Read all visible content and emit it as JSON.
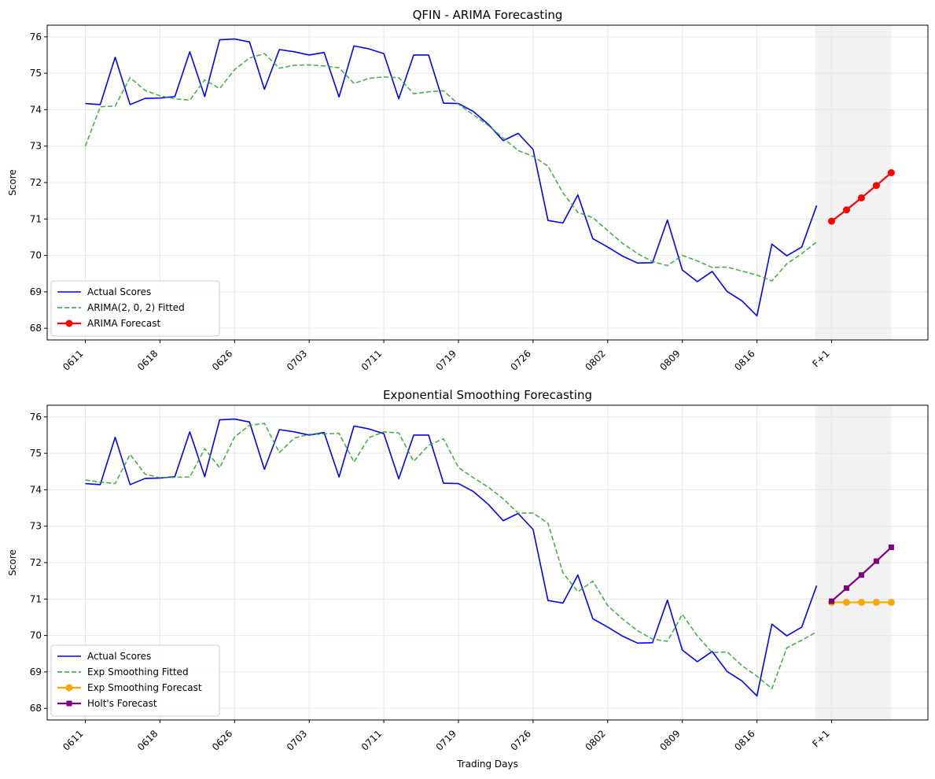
{
  "chart_data": [
    {
      "type": "line",
      "title": "QFIN - ARIMA Forecasting",
      "xlabel": "",
      "ylabel": "Score",
      "ylim": [
        68,
        76
      ],
      "yticks": [
        68,
        69,
        70,
        71,
        72,
        73,
        74,
        75,
        76
      ],
      "xtick_labels": [
        "0611",
        "0618",
        "0626",
        "0703",
        "0711",
        "0719",
        "0726",
        "0802",
        "0809",
        "0816",
        "F+1"
      ],
      "grid": true,
      "legend_position": "lower-left",
      "forecast_region": "F+1 to F+5",
      "series": [
        {
          "name": "Actual Scores",
          "color": "#0000ff",
          "style": "solid",
          "marker": "none",
          "values": [
            74.17,
            74.14,
            75.44,
            74.14,
            74.31,
            74.32,
            74.36,
            75.59,
            74.36,
            75.92,
            75.94,
            75.86,
            74.56,
            75.65,
            75.59,
            75.5,
            75.57,
            74.35,
            75.75,
            75.67,
            75.54,
            74.3,
            75.5,
            75.5,
            74.18,
            74.17,
            73.95,
            73.6,
            73.15,
            73.35,
            72.91,
            70.96,
            70.89,
            71.66,
            70.46,
            70.23,
            69.98,
            69.79,
            69.8,
            70.97,
            69.6,
            69.28,
            69.56,
            69.01,
            68.75,
            68.34,
            70.31,
            69.99,
            70.23,
            71.37
          ]
        },
        {
          "name": "ARIMA(2, 0, 2) Fitted",
          "color": "#2ca02c",
          "style": "dashed",
          "marker": "none",
          "values": [
            73.0,
            74.08,
            74.1,
            74.88,
            74.53,
            74.38,
            74.3,
            74.26,
            74.82,
            74.58,
            75.1,
            75.42,
            75.54,
            75.14,
            75.22,
            75.23,
            75.2,
            75.15,
            74.72,
            74.86,
            74.9,
            74.88,
            74.44,
            74.49,
            74.52,
            74.15,
            73.86,
            73.57,
            73.22,
            72.88,
            72.72,
            72.45,
            71.72,
            71.18,
            71.04,
            70.68,
            70.33,
            70.05,
            69.83,
            69.72,
            70.0,
            69.85,
            69.67,
            69.68,
            69.57,
            69.46,
            69.3,
            69.77,
            70.05,
            70.37
          ]
        },
        {
          "name": "ARIMA Forecast",
          "color": "#ff0000",
          "style": "solid",
          "marker": "circle",
          "values": [
            70.94,
            71.25,
            71.58,
            71.92,
            72.27
          ]
        }
      ]
    },
    {
      "type": "line",
      "title": "Exponential Smoothing Forecasting",
      "xlabel": "Trading Days",
      "ylabel": "Score",
      "ylim": [
        68,
        76
      ],
      "yticks": [
        68,
        69,
        70,
        71,
        72,
        73,
        74,
        75,
        76
      ],
      "xtick_labels": [
        "0611",
        "0618",
        "0626",
        "0703",
        "0711",
        "0719",
        "0726",
        "0802",
        "0809",
        "0816",
        "F+1"
      ],
      "grid": true,
      "legend_position": "lower-left",
      "forecast_region": "F+1 to F+5",
      "series": [
        {
          "name": "Actual Scores",
          "color": "#0000ff",
          "style": "solid",
          "marker": "none",
          "values": [
            74.17,
            74.14,
            75.44,
            74.14,
            74.31,
            74.32,
            74.36,
            75.59,
            74.36,
            75.92,
            75.94,
            75.86,
            74.56,
            75.65,
            75.59,
            75.5,
            75.57,
            74.35,
            75.75,
            75.67,
            75.54,
            74.3,
            75.5,
            75.5,
            74.18,
            74.17,
            73.95,
            73.6,
            73.15,
            73.35,
            72.91,
            70.96,
            70.89,
            71.66,
            70.46,
            70.23,
            69.98,
            69.79,
            69.8,
            70.97,
            69.6,
            69.28,
            69.56,
            69.01,
            68.75,
            68.34,
            70.31,
            69.99,
            70.23,
            71.37
          ]
        },
        {
          "name": "Exp Smoothing Fitted",
          "color": "#2ca02c",
          "style": "dashed",
          "marker": "none",
          "values": [
            74.27,
            74.21,
            74.17,
            74.97,
            74.43,
            74.33,
            74.34,
            74.35,
            75.13,
            74.6,
            75.45,
            75.77,
            75.82,
            75.02,
            75.42,
            75.52,
            75.53,
            75.55,
            74.76,
            75.43,
            75.59,
            75.56,
            74.78,
            75.22,
            75.4,
            74.61,
            74.33,
            74.07,
            73.75,
            73.36,
            73.36,
            73.08,
            71.72,
            71.2,
            71.49,
            70.82,
            70.45,
            70.13,
            69.9,
            69.84,
            70.58,
            69.99,
            69.53,
            69.55,
            69.17,
            68.88,
            68.54,
            69.66,
            69.87,
            70.1
          ]
        },
        {
          "name": "Exp Smoothing Forecast",
          "color": "#ffa500",
          "style": "solid",
          "marker": "circle",
          "values": [
            70.91,
            70.91,
            70.91,
            70.91,
            70.91
          ]
        },
        {
          "name": "Holt's Forecast",
          "color": "#800080",
          "style": "solid",
          "marker": "square",
          "values": [
            70.94,
            71.3,
            71.66,
            72.04,
            72.42
          ]
        }
      ]
    }
  ]
}
